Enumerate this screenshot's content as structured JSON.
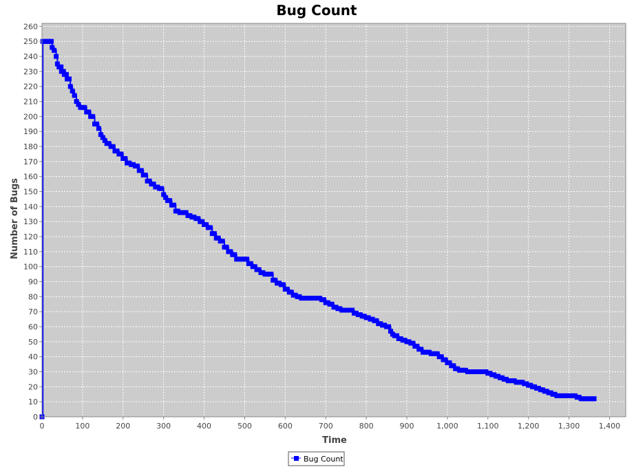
{
  "chart_data": {
    "type": "line",
    "title": "Bug Count",
    "xlabel": "Time",
    "ylabel": "Number of Bugs",
    "xlim": [
      0,
      1440
    ],
    "ylim": [
      0,
      262
    ],
    "xticks": [
      0,
      100,
      200,
      300,
      400,
      500,
      600,
      700,
      800,
      900,
      1000,
      1100,
      1200,
      1300,
      1400
    ],
    "xtick_labels": [
      "0",
      "100",
      "200",
      "300",
      "400",
      "500",
      "600",
      "700",
      "800",
      "900",
      "1,000",
      "1,100",
      "1,200",
      "1,300",
      "1,400"
    ],
    "yticks": [
      0,
      10,
      20,
      30,
      40,
      50,
      60,
      70,
      80,
      90,
      100,
      110,
      120,
      130,
      140,
      150,
      160,
      170,
      180,
      190,
      200,
      210,
      220,
      230,
      240,
      250,
      260
    ],
    "grid": true,
    "legend_position": "bottom-center",
    "series": [
      {
        "name": "Bug Count",
        "color": "#0000ff",
        "marker": "square",
        "x": [
          0,
          2,
          5,
          18,
          25,
          30,
          35,
          38,
          42,
          48,
          55,
          62,
          70,
          75,
          80,
          85,
          90,
          95,
          100,
          110,
          120,
          130,
          140,
          145,
          150,
          155,
          160,
          170,
          180,
          190,
          200,
          210,
          220,
          230,
          240,
          250,
          260,
          270,
          280,
          290,
          300,
          305,
          310,
          320,
          330,
          340,
          350,
          360,
          370,
          380,
          390,
          400,
          410,
          420,
          430,
          440,
          450,
          460,
          470,
          480,
          490,
          500,
          510,
          520,
          530,
          540,
          550,
          560,
          570,
          580,
          590,
          600,
          610,
          620,
          630,
          640,
          650,
          680,
          690,
          700,
          710,
          720,
          730,
          740,
          750,
          760,
          770,
          780,
          790,
          800,
          810,
          820,
          830,
          840,
          850,
          860,
          865,
          870,
          880,
          890,
          900,
          910,
          920,
          930,
          940,
          950,
          960,
          970,
          980,
          990,
          1000,
          1010,
          1020,
          1030,
          1040,
          1050,
          1060,
          1070,
          1080,
          1090,
          1100,
          1110,
          1120,
          1130,
          1140,
          1150,
          1160,
          1170,
          1180,
          1190,
          1200,
          1210,
          1220,
          1230,
          1240,
          1250,
          1260,
          1270,
          1280,
          1290,
          1300,
          1310,
          1320,
          1330,
          1340,
          1350,
          1362
        ],
        "values": [
          0,
          250,
          250,
          250,
          246,
          244,
          240,
          235,
          233,
          230,
          228,
          225,
          220,
          217,
          214,
          210,
          208,
          206,
          206,
          203,
          200,
          195,
          192,
          188,
          186,
          184,
          182,
          180,
          177,
          175,
          172,
          169,
          168,
          167,
          164,
          161,
          157,
          155,
          153,
          152,
          148,
          146,
          144,
          141,
          137,
          136,
          136,
          134,
          133,
          132,
          130,
          128,
          126,
          122,
          119,
          117,
          113,
          110,
          108,
          105,
          105,
          105,
          102,
          100,
          98,
          96,
          95,
          95,
          91,
          89,
          88,
          85,
          83,
          81,
          80,
          79,
          79,
          79,
          78,
          76,
          75,
          73,
          72,
          71,
          71,
          71,
          69,
          68,
          67,
          66,
          65,
          64,
          62,
          61,
          60,
          57,
          55,
          54,
          52,
          51,
          50,
          49,
          47,
          45,
          43,
          43,
          42,
          42,
          40,
          38,
          36,
          34,
          32,
          31,
          31,
          30,
          30,
          30,
          30,
          30,
          29,
          28,
          27,
          26,
          25,
          24,
          24,
          23,
          23,
          22,
          21,
          20,
          19,
          18,
          17,
          16,
          15,
          14,
          14,
          14,
          14,
          14,
          13,
          12,
          12,
          12,
          12
        ]
      }
    ]
  }
}
